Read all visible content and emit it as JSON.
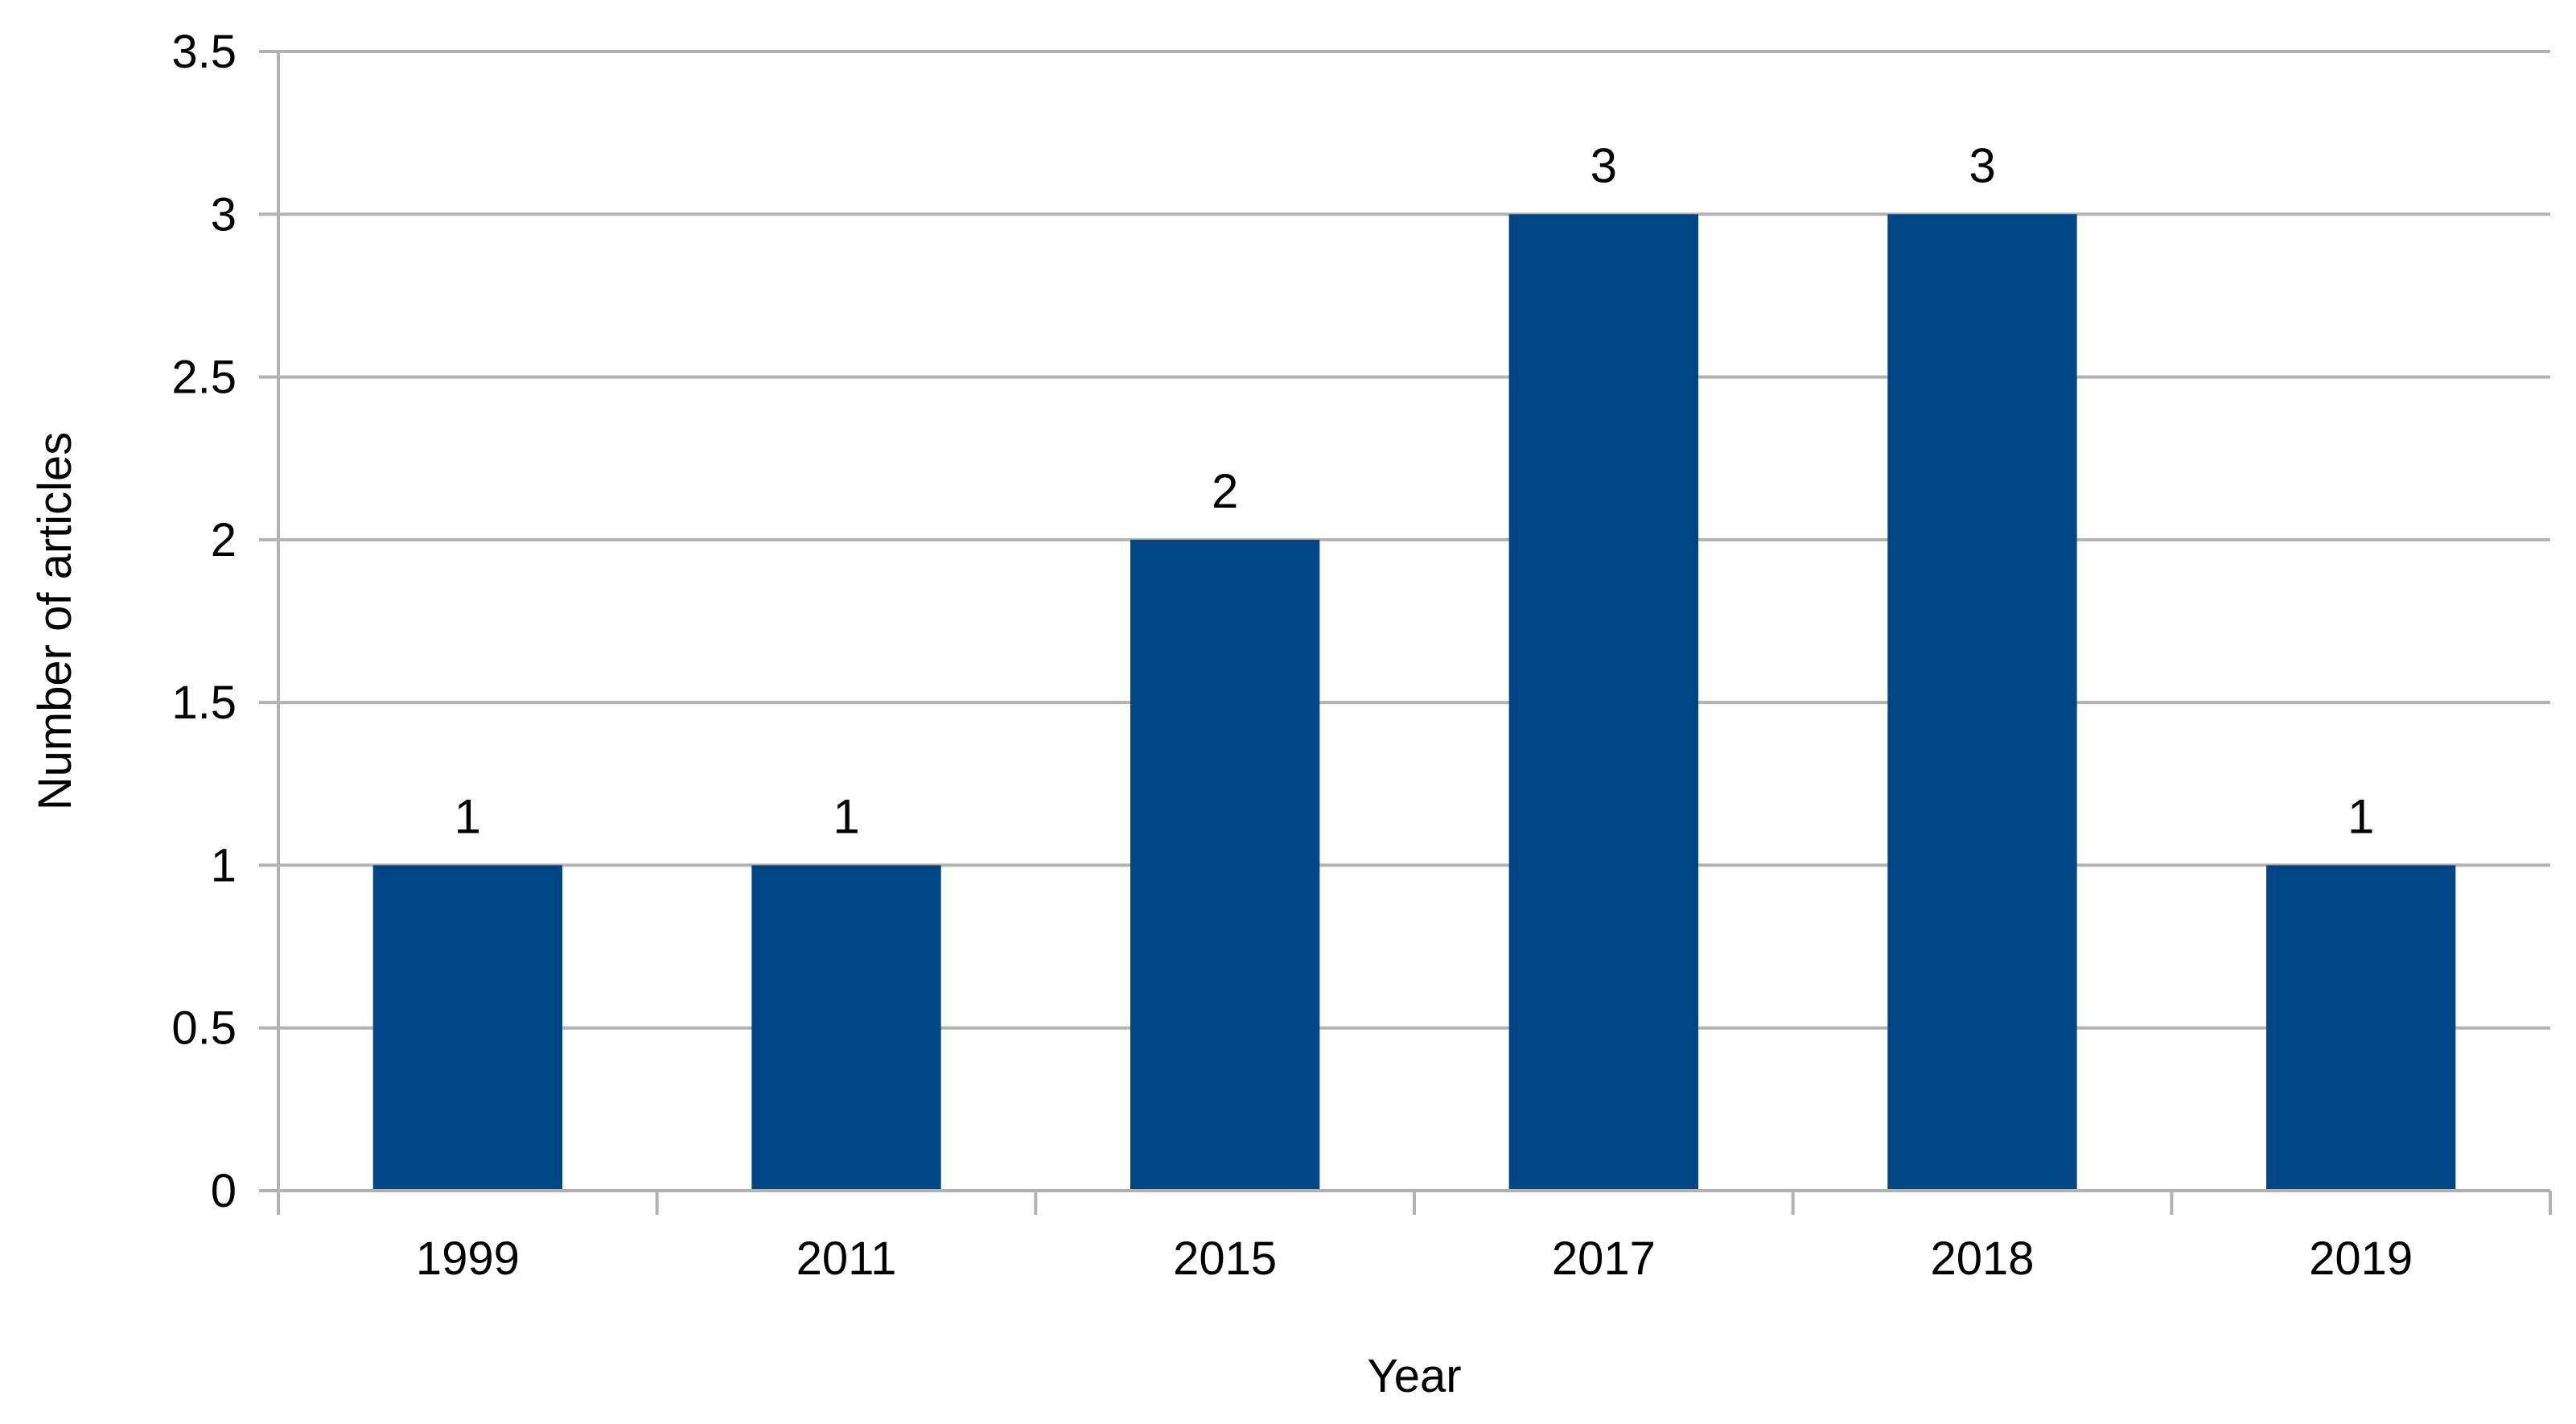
{
  "chart_data": {
    "type": "bar",
    "categories": [
      "1999",
      "2011",
      "2015",
      "2017",
      "2018",
      "2019"
    ],
    "values": [
      1,
      1,
      2,
      3,
      3,
      1
    ],
    "data_labels": [
      "1",
      "1",
      "2",
      "3",
      "3",
      "1"
    ],
    "title": "",
    "xlabel": "Year",
    "ylabel": "Number of articles",
    "ylim": [
      0,
      3.5
    ],
    "yticks": [
      "0",
      "0.5",
      "1",
      "1.5",
      "2",
      "2.5",
      "3",
      "3.5"
    ],
    "grid": true,
    "legend": "none",
    "bar_color": "#004586"
  }
}
